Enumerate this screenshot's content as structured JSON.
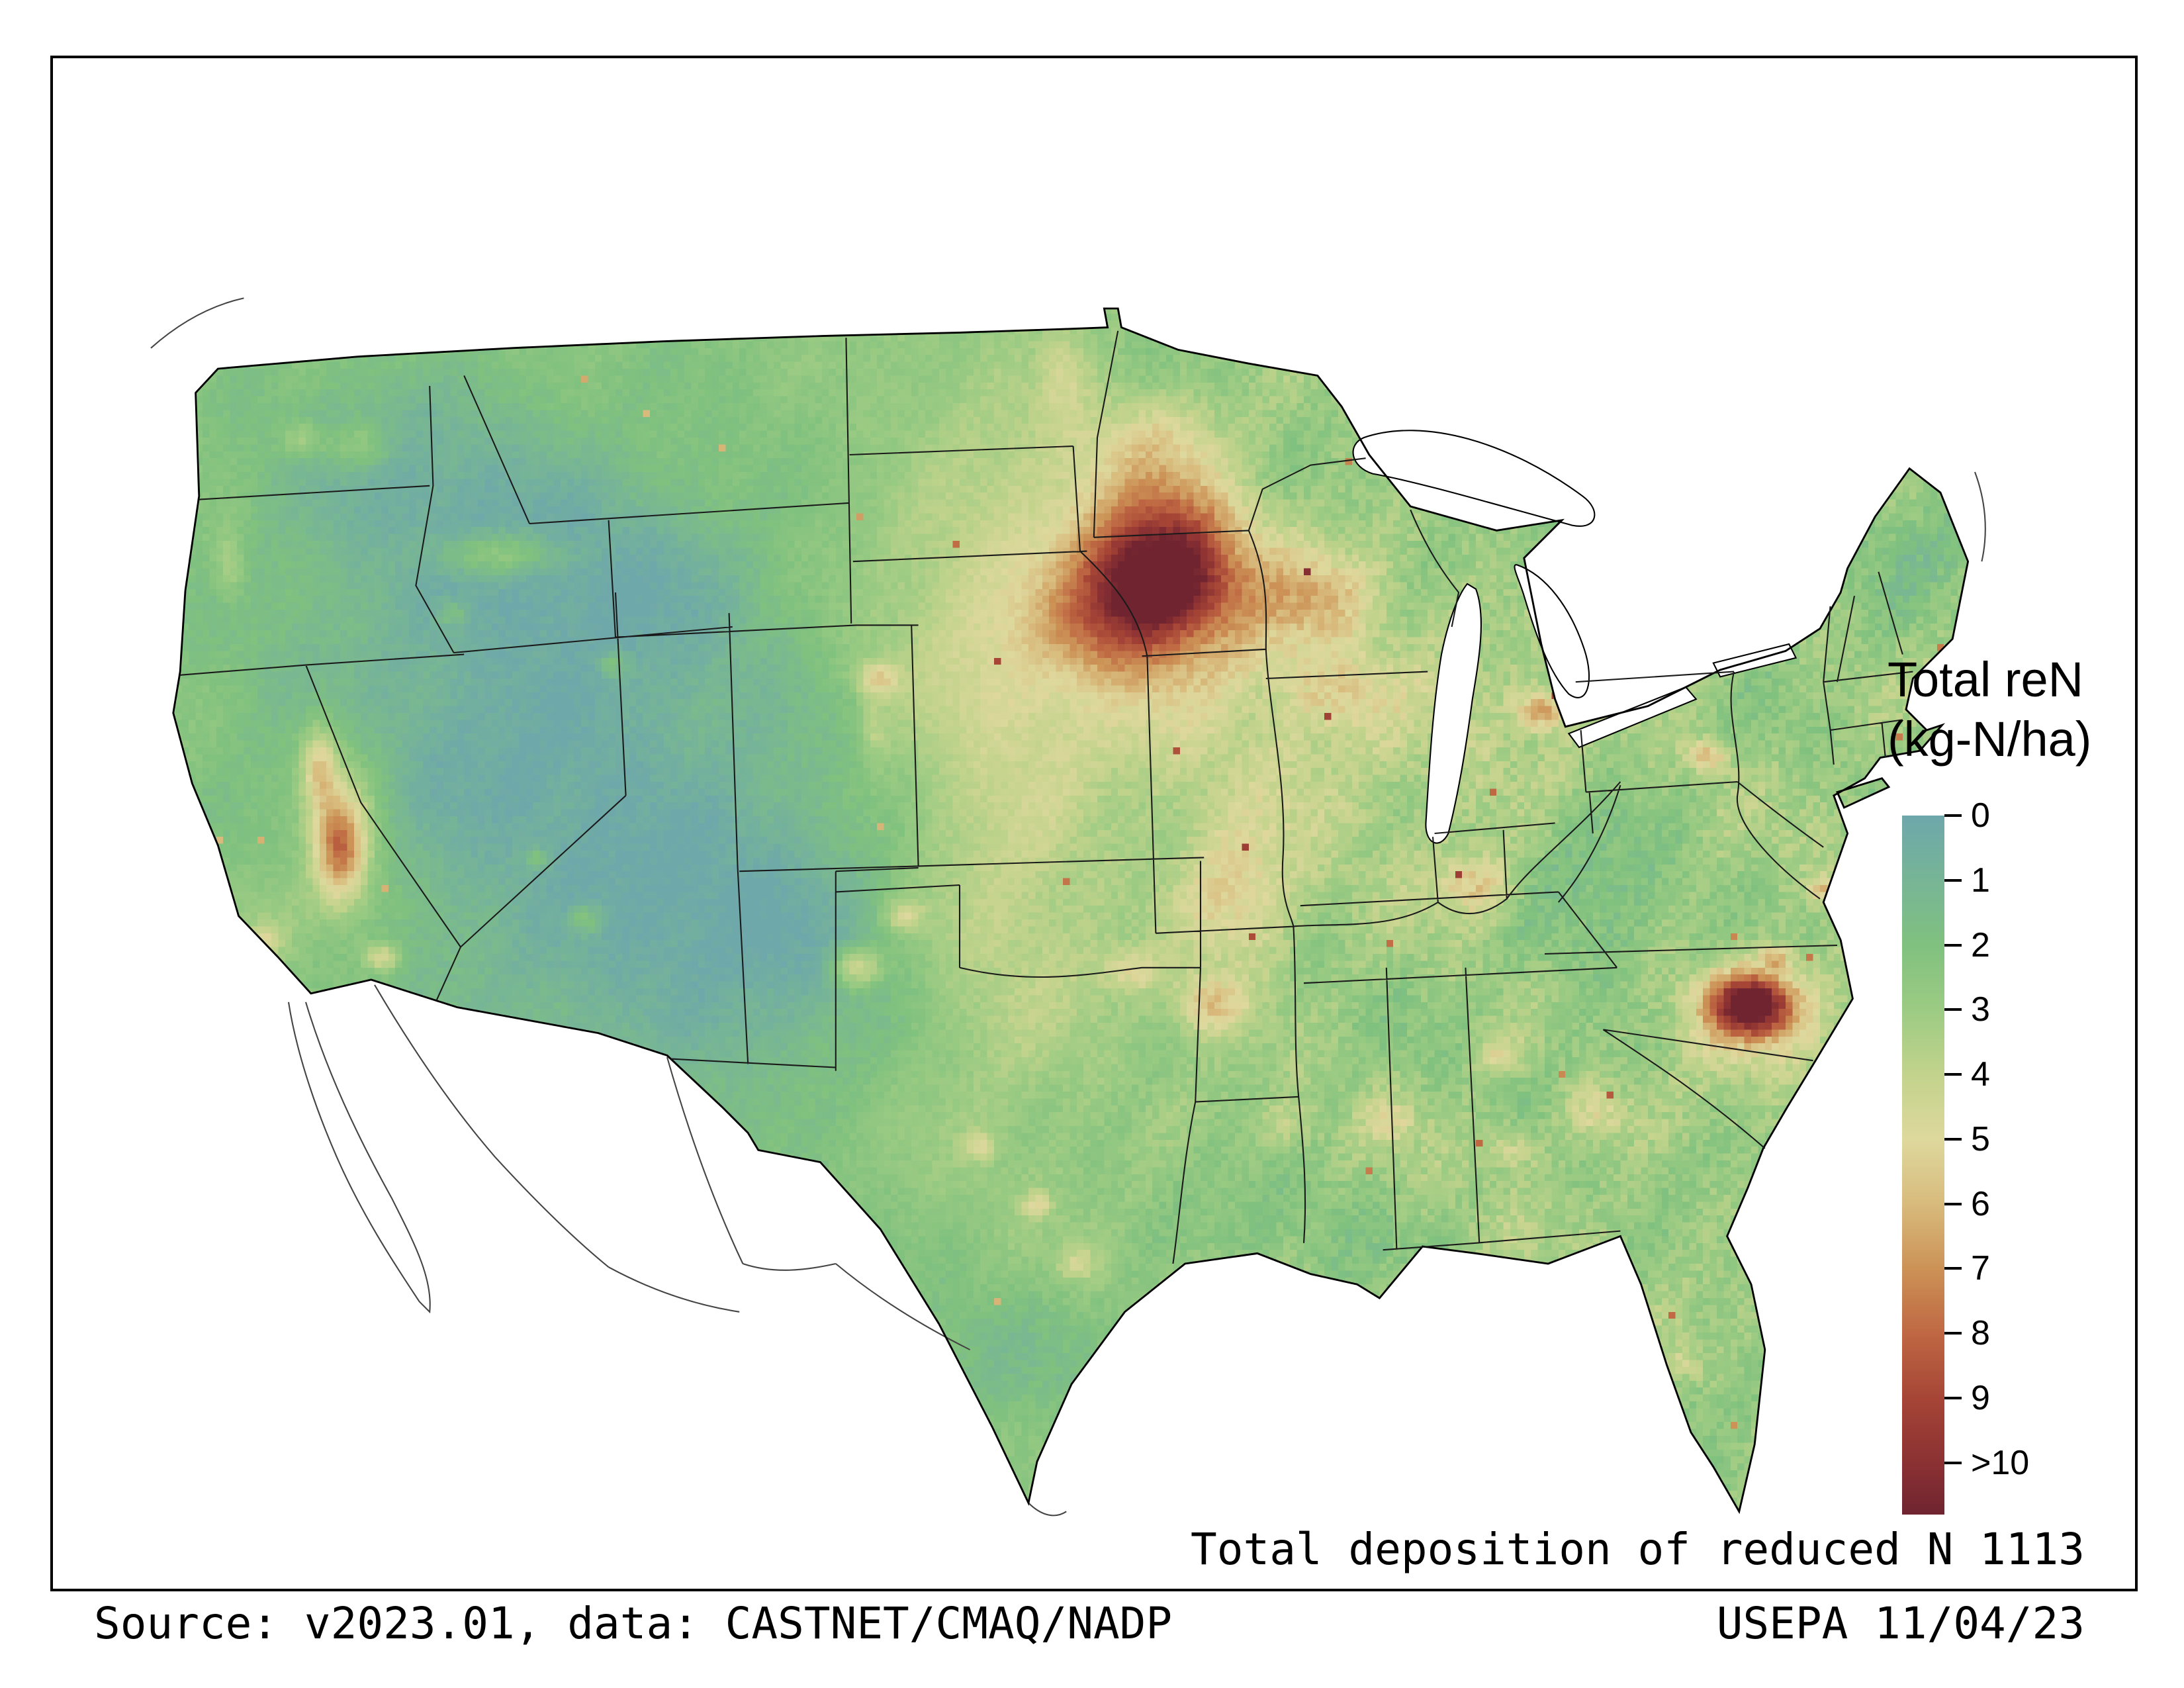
{
  "window": {
    "background": "#ffffff",
    "frame_color": "#000000"
  },
  "legend": {
    "title_line1": "Total reN",
    "title_line2": "(kg-N/ha)",
    "tick_labels": [
      "0",
      "1",
      "2",
      "3",
      "4",
      "5",
      "6",
      "7",
      "8",
      "9",
      ">10"
    ],
    "scale_max": 10.8,
    "colormap": [
      [
        0,
        "#6ea7ab"
      ],
      [
        1,
        "#77b596"
      ],
      [
        2,
        "#80c17f"
      ],
      [
        3,
        "#9ccb83"
      ],
      [
        4,
        "#c2d38c"
      ],
      [
        5,
        "#ded89d"
      ],
      [
        6,
        "#d8bb7d"
      ],
      [
        7,
        "#cc9256"
      ],
      [
        8,
        "#bf6843"
      ],
      [
        9,
        "#a64536"
      ],
      [
        10,
        "#8b3133"
      ],
      [
        10.8,
        "#6f2430"
      ]
    ]
  },
  "captions": {
    "map_title": "Total deposition of reduced N 1113",
    "source": "Source: v2023.01, data: CASTNET/CMAQ/NADP",
    "agency_date": "USEPA 11/04/23"
  },
  "map": {
    "base": 2.45,
    "east_gain": 0.55,
    "field": [
      [
        250,
        330,
        150,
        130,
        -2.0
      ],
      [
        185,
        185,
        95,
        70,
        -1.4
      ],
      [
        345,
        470,
        130,
        90,
        -1.5
      ],
      [
        310,
        240,
        80,
        60,
        -1.0
      ],
      [
        420,
        420,
        90,
        90,
        -0.8
      ],
      [
        1055,
        235,
        55,
        45,
        -0.9
      ],
      [
        872,
        425,
        50,
        85,
        -1.0
      ],
      [
        700,
        618,
        55,
        35,
        -0.6
      ],
      [
        520,
        700,
        70,
        50,
        -0.8
      ],
      [
        930,
        730,
        40,
        40,
        -0.5
      ],
      [
        520,
        290,
        75,
        150,
        2.0
      ],
      [
        520,
        470,
        65,
        110,
        1.2
      ],
      [
        600,
        200,
        60,
        50,
        1.2
      ],
      [
        680,
        330,
        90,
        70,
        1.0
      ],
      [
        800,
        350,
        80,
        50,
        0.8
      ],
      [
        615,
        243,
        40,
        30,
        6.5
      ],
      [
        632,
        262,
        70,
        55,
        2.8
      ],
      [
        588,
        272,
        40,
        30,
        2.2
      ],
      [
        622,
        208,
        40,
        28,
        2.2
      ],
      [
        712,
        252,
        32,
        26,
        2.0
      ],
      [
        660,
        430,
        35,
        45,
        2.6
      ],
      [
        720,
        310,
        28,
        22,
        1.6
      ],
      [
        800,
        420,
        22,
        18,
        2.6
      ],
      [
        838,
        318,
        14,
        12,
        3.6
      ],
      [
        935,
        345,
        11,
        9,
        3.4
      ],
      [
        960,
        490,
        24,
        17,
        7.5
      ],
      [
        958,
        492,
        45,
        35,
        2.2
      ],
      [
        1003,
        423,
        10,
        9,
        2.8
      ],
      [
        975,
        462,
        8,
        7,
        2.6
      ],
      [
        645,
        490,
        20,
        16,
        2.8
      ],
      [
        600,
        470,
        18,
        12,
        1.8
      ],
      [
        440,
        468,
        14,
        11,
        3.0
      ],
      [
        468,
        438,
        11,
        9,
        2.2
      ],
      [
        452,
        300,
        12,
        10,
        2.8
      ],
      [
        450,
        330,
        8,
        20,
        1.2
      ],
      [
        140,
        398,
        14,
        30,
        4.5
      ],
      [
        128,
        352,
        10,
        24,
        3.2
      ],
      [
        142,
        390,
        26,
        65,
        1.8
      ],
      [
        165,
        462,
        10,
        8,
        2.6
      ],
      [
        232,
        228,
        38,
        13,
        2.2
      ],
      [
        118,
        162,
        12,
        10,
        1.8
      ],
      [
        150,
        165,
        18,
        14,
        1.6
      ],
      [
        76,
        235,
        9,
        22,
        1.4
      ],
      [
        620,
        160,
        40,
        28,
        1.6
      ],
      [
        870,
        552,
        20,
        16,
        2.0
      ],
      [
        820,
        572,
        18,
        14,
        1.8
      ],
      [
        812,
        518,
        14,
        11,
        1.6
      ],
      [
        750,
        556,
        16,
        13,
        1.5
      ],
      [
        568,
        640,
        12,
        9,
        1.8
      ],
      [
        512,
        572,
        9,
        8,
        2.0
      ],
      [
        545,
        606,
        8,
        7,
        2.2
      ],
      [
        920,
        698,
        14,
        12,
        1.4
      ],
      [
        560,
        120,
        14,
        30,
        1.2
      ],
      [
        100,
        440,
        25,
        30,
        1.2
      ],
      [
        96,
        452,
        10,
        8,
        2.0
      ],
      [
        282,
        440,
        10,
        8,
        1.8
      ],
      [
        255,
        405,
        7,
        6,
        1.5
      ],
      [
        298,
        292,
        9,
        8,
        1.6
      ],
      [
        205,
        262,
        8,
        7,
        1.4
      ],
      [
        690,
        560,
        20,
        15,
        1.2
      ]
    ]
  }
}
